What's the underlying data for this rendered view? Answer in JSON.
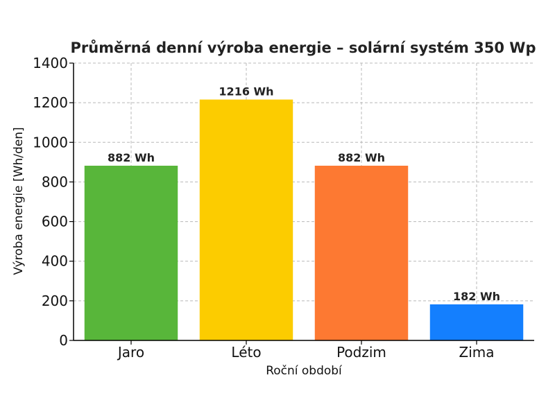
{
  "chart_data": {
    "type": "bar",
    "title": "Průměrná denní výroba energie – solární systém 350 Wp",
    "xlabel": "Roční období",
    "ylabel": "Výroba energie [Wh/den]",
    "categories": [
      "Jaro",
      "Léto",
      "Podzim",
      "Zima"
    ],
    "values": [
      882,
      1216,
      882,
      182
    ],
    "data_labels": [
      "882 Wh",
      "1216 Wh",
      "882 Wh",
      "182 Wh"
    ],
    "colors": [
      "#58b63a",
      "#fccc00",
      "#fd7932",
      "#147ffe"
    ],
    "ylim": [
      0,
      1400
    ],
    "yticks": [
      0,
      200,
      400,
      600,
      800,
      1000,
      1200,
      1400
    ],
    "grid": true,
    "legend": "none"
  }
}
